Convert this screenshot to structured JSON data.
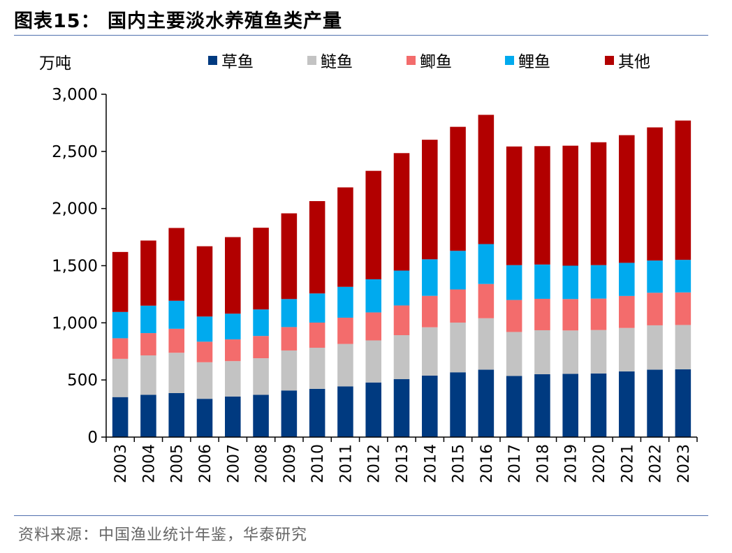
{
  "header": {
    "title": "图表15：  国内主要淡水养殖鱼类产量"
  },
  "footer": {
    "source": "资料来源：中国渔业统计年鉴，华泰研究"
  },
  "chart_data": {
    "type": "bar",
    "stacked": true,
    "ylabel": "万吨",
    "ylim": [
      0,
      3000
    ],
    "yticks": [
      0,
      500,
      1000,
      1500,
      2000,
      2500,
      3000
    ],
    "ytick_labels": [
      "0",
      "500",
      "1,000",
      "1,500",
      "2,000",
      "2,500",
      "3,000"
    ],
    "legend": "top",
    "grid": false,
    "categories": [
      "2003",
      "2004",
      "2005",
      "2006",
      "2007",
      "2008",
      "2009",
      "2010",
      "2011",
      "2012",
      "2013",
      "2014",
      "2015",
      "2016",
      "2017",
      "2018",
      "2019",
      "2020",
      "2021",
      "2022",
      "2023"
    ],
    "series": [
      {
        "name": "草鱼",
        "color": "#003a80",
        "values": [
          350,
          370,
          385,
          335,
          355,
          370,
          408,
          422,
          444,
          478,
          507,
          538,
          567,
          590,
          535,
          550,
          553,
          557,
          575,
          590,
          593
        ]
      },
      {
        "name": "鲢鱼",
        "color": "#c3c3c3",
        "values": [
          335,
          345,
          353,
          320,
          310,
          320,
          350,
          360,
          371,
          368,
          385,
          423,
          435,
          450,
          385,
          385,
          380,
          380,
          380,
          388,
          388
        ]
      },
      {
        "name": "鲫鱼",
        "color": "#f36c6c",
        "values": [
          180,
          195,
          210,
          180,
          190,
          195,
          205,
          220,
          230,
          245,
          260,
          275,
          290,
          300,
          280,
          275,
          275,
          275,
          280,
          285,
          285
        ]
      },
      {
        "name": "鲤鱼",
        "color": "#00aaee",
        "values": [
          230,
          240,
          245,
          220,
          225,
          232,
          245,
          255,
          270,
          290,
          305,
          320,
          338,
          349,
          305,
          300,
          292,
          293,
          290,
          282,
          285
        ]
      },
      {
        "name": "其他",
        "color": "#b20000",
        "values": [
          525,
          570,
          637,
          615,
          670,
          715,
          750,
          808,
          870,
          949,
          1028,
          1046,
          1085,
          1131,
          1038,
          1036,
          1050,
          1075,
          1117,
          1165,
          1219
        ]
      }
    ]
  }
}
